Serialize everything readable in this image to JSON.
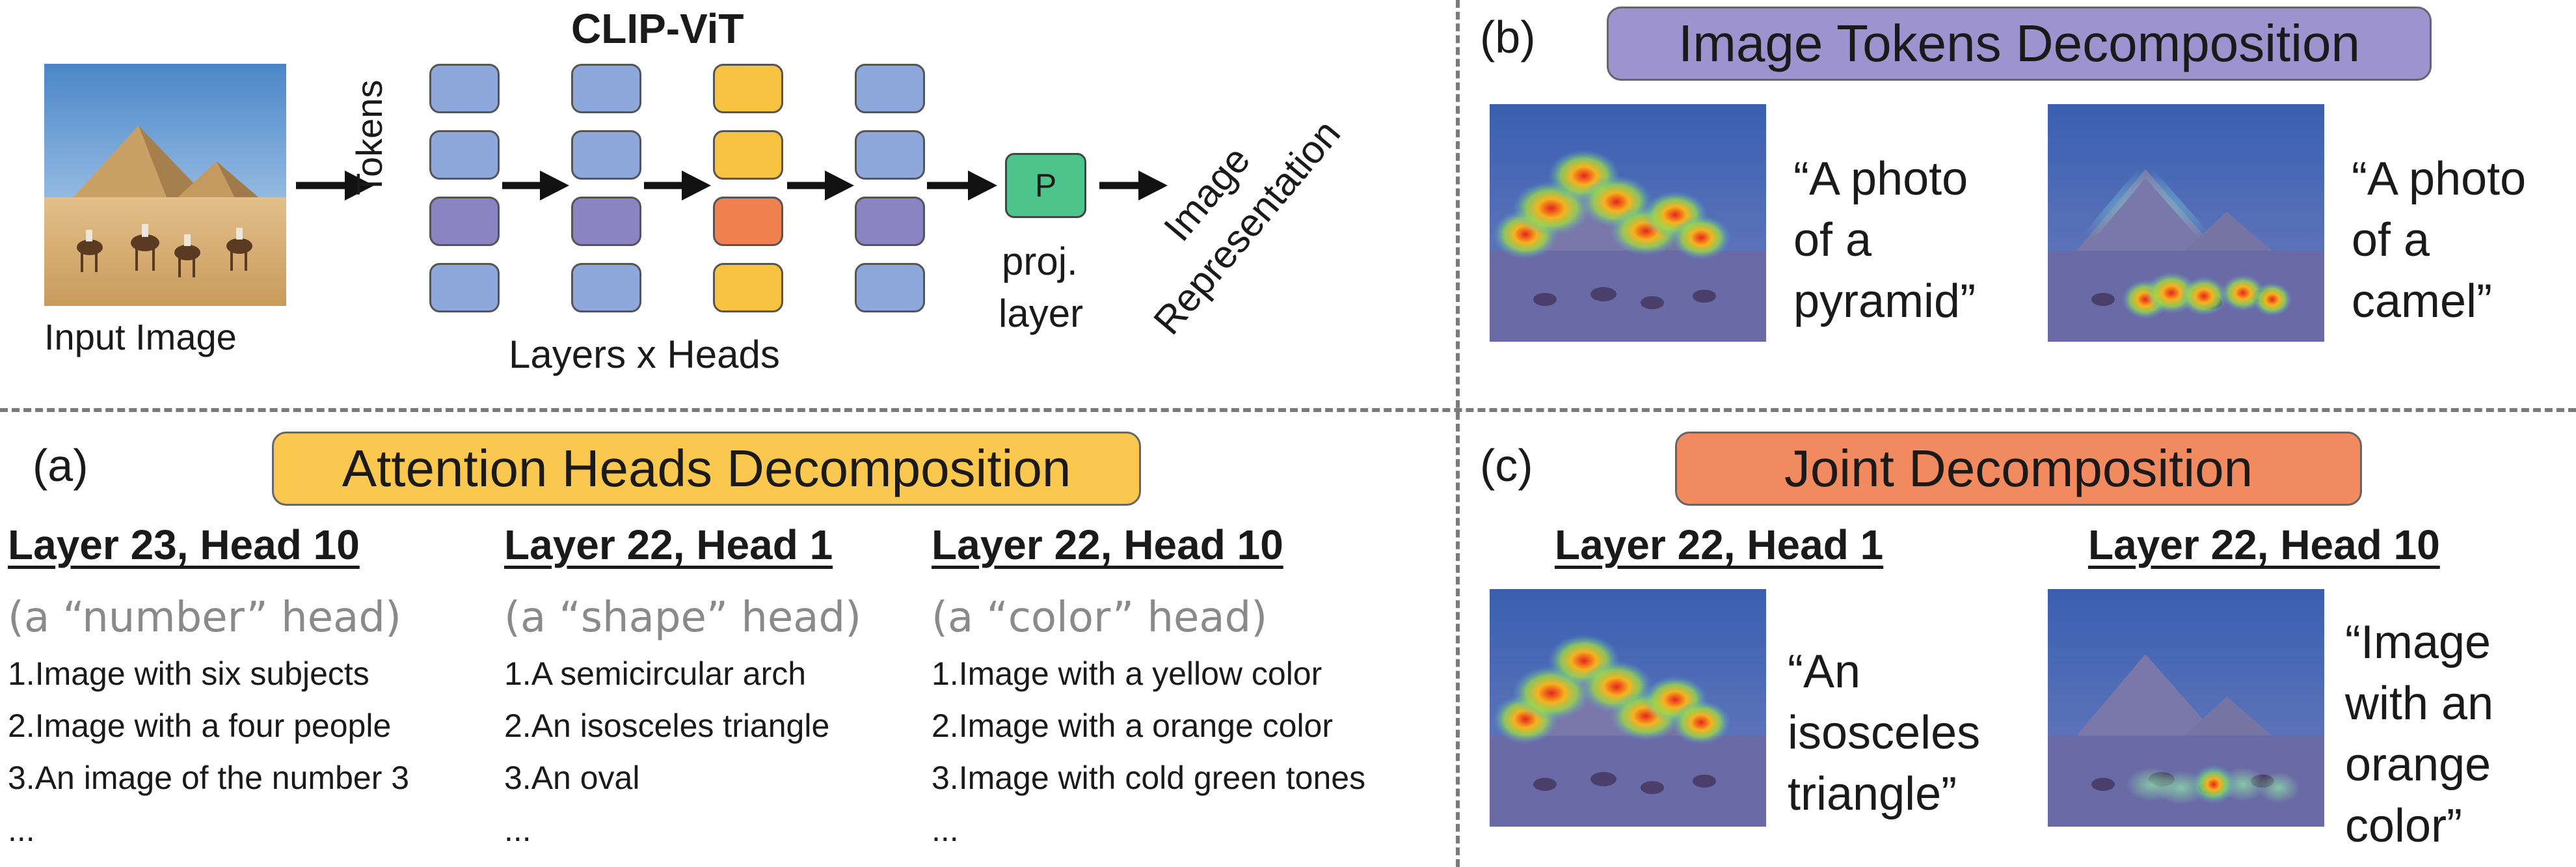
{
  "top": {
    "model_title": "CLIP-ViT",
    "input_label": "Input Image",
    "tokens_label": "Tokens",
    "layers_label": "Layers x Heads",
    "proj_symbol": "P",
    "proj_label_line1": "proj.",
    "proj_label_line2": "layer",
    "output_line1": "Image",
    "output_line2": "Representation"
  },
  "panel_a": {
    "marker": "(a)",
    "title": "Attention Heads Decomposition",
    "title_color": "#fbc84f",
    "heads": [
      {
        "heading": "Layer 23, Head 10",
        "role": "(a “number” head)",
        "items": [
          "1.Image with six subjects",
          "2.Image with a four people",
          "3.An image of the number 3",
          "..."
        ]
      },
      {
        "heading": "Layer 22, Head 1",
        "role": "(a “shape” head)",
        "items": [
          "1.A semicircular arch",
          "2.An isosceles triangle",
          "3.An oval",
          "..."
        ]
      },
      {
        "heading": "Layer 22, Head 10",
        "role": "(a “color” head)",
        "items": [
          "1.Image with a yellow color",
          "2.Image with a orange color",
          "3.Image with cold green tones",
          "..."
        ]
      }
    ]
  },
  "panel_b": {
    "marker": "(b)",
    "title": "Image Tokens Decomposition",
    "title_color": "#9c93cf",
    "quote1": [
      "“A photo",
      "of a",
      "pyramid”"
    ],
    "quote2": [
      "“A photo",
      "of a",
      "camel”"
    ]
  },
  "panel_c": {
    "marker": "(c)",
    "title": "Joint Decomposition",
    "title_color": "#f28a5f",
    "heading1": "Layer 22, Head 1",
    "heading2": "Layer 22, Head 10",
    "quote1": [
      "“An",
      "isosceles",
      "triangle”"
    ],
    "quote2": [
      "“Image",
      "with an",
      "orange",
      "color”"
    ]
  },
  "colors": {
    "token_blue": "#8fa8dc",
    "token_purple": "#8b83c2",
    "token_yellow": "#f8c340",
    "token_orange": "#f08050",
    "proj_green": "#4ec48c",
    "divider": "#7a7a7a"
  }
}
